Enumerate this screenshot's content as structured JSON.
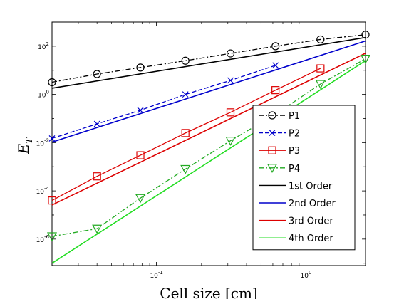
{
  "chart_data": {
    "type": "line",
    "x_scale": "log",
    "y_scale": "log",
    "xlabel": "Cell size [cm]",
    "ylabel_base": "E",
    "ylabel_sub": "T",
    "xlim": [
      0.02,
      2.5
    ],
    "ylim": [
      8e-08,
      1000
    ],
    "xticks": [
      {
        "value": 0.1,
        "base": "10",
        "exp": "-1"
      },
      {
        "value": 1,
        "base": "10",
        "exp": "0"
      }
    ],
    "yticks": [
      {
        "value": 1e-06,
        "base": "10",
        "exp": "-6"
      },
      {
        "value": 0.0001,
        "base": "10",
        "exp": "-4"
      },
      {
        "value": 0.01,
        "base": "10",
        "exp": "-2"
      },
      {
        "value": 1,
        "base": "10",
        "exp": "0"
      },
      {
        "value": 100,
        "base": "10",
        "exp": "2"
      }
    ],
    "legend_position": "bottom-right",
    "series": [
      {
        "name": "P1",
        "kind": "data",
        "color": "#000000",
        "dash": "dashdot",
        "marker": "circle",
        "x": [
          0.02,
          0.04,
          0.078,
          0.156,
          0.3125,
          0.625,
          1.25,
          2.5
        ],
        "y": [
          3.2,
          7.0,
          13.0,
          25.0,
          50.0,
          100.0,
          190.0,
          300.0
        ]
      },
      {
        "name": "P2",
        "kind": "data",
        "color": "#0000cc",
        "dash": "dashed",
        "marker": "x",
        "x": [
          0.02,
          0.04,
          0.078,
          0.156,
          0.3125,
          0.625
        ],
        "y": [
          0.015,
          0.06,
          0.22,
          1.0,
          3.8,
          16.0
        ]
      },
      {
        "name": "P3",
        "kind": "data",
        "color": "#dd0000",
        "dash": "solid",
        "marker": "square",
        "x": [
          0.02,
          0.04,
          0.078,
          0.156,
          0.3125,
          0.625,
          1.25
        ],
        "y": [
          4e-05,
          0.0004,
          0.003,
          0.025,
          0.18,
          1.5,
          12.0
        ]
      },
      {
        "name": "P4",
        "kind": "data",
        "color": "#22aa22",
        "dash": "dashdot",
        "marker": "triangle-down",
        "x": [
          0.02,
          0.04,
          0.078,
          0.156,
          0.3125,
          0.625,
          1.25,
          2.5
        ],
        "y": [
          1.3e-06,
          2.7e-06,
          5e-05,
          0.0008,
          0.012,
          0.15,
          2.7,
          30.0
        ]
      },
      {
        "name": "1st Order",
        "kind": "reference",
        "color": "#000000",
        "dash": "solid",
        "marker": "none",
        "x": [
          0.02,
          2.5
        ],
        "y": [
          1.8,
          230.0
        ]
      },
      {
        "name": "2nd Order",
        "kind": "reference",
        "color": "#0000cc",
        "dash": "solid",
        "marker": "none",
        "x": [
          0.02,
          2.5
        ],
        "y": [
          0.0105,
          165.0
        ]
      },
      {
        "name": "3rd Order",
        "kind": "reference",
        "color": "#dd0000",
        "dash": "solid",
        "marker": "none",
        "x": [
          0.02,
          2.5
        ],
        "y": [
          2.6e-05,
          51.0
        ]
      },
      {
        "name": "4th Order",
        "kind": "reference",
        "color": "#22dd22",
        "dash": "solid",
        "marker": "none",
        "x": [
          0.02,
          2.5
        ],
        "y": [
          1e-07,
          25.0
        ]
      }
    ]
  }
}
